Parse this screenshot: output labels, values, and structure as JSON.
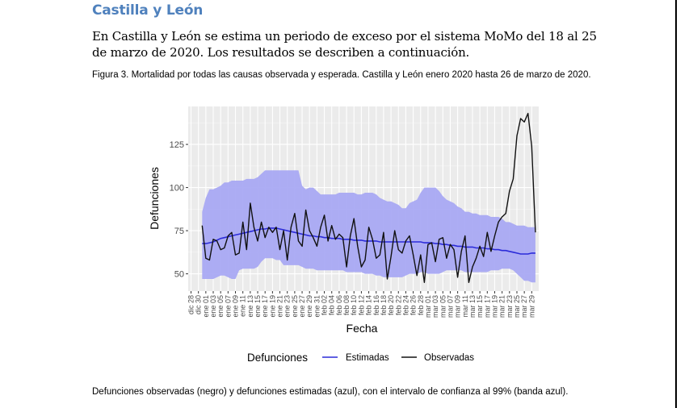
{
  "heading": "Castilla y León",
  "intro": "En Castilla y León se estima un periodo de exceso por el sistema MoMo del 18 al 25 de marzo de 2020. Los resultados se describen a continuación.",
  "caption": "Figura 3. Mortalidad por todas las causas observada y esperada. Castilla y León enero 2020 hasta 26 de marzo de 2020.",
  "footnote": "Defunciones observadas (negro) y defunciones estimadas (azul), con el intervalo de confianza al 99% (banda azul).",
  "colors": {
    "heading": "#4f81bd",
    "estimated": "#2b2bd9",
    "observed": "#111111",
    "band": "#a9a9f3"
  },
  "chart_data": {
    "type": "line",
    "xlabel": "Fecha",
    "ylabel": "Defunciones",
    "ylim": [
      40,
      147
    ],
    "yticks": [
      50,
      75,
      100,
      125
    ],
    "x_tick_labels": [
      "dic 28",
      "dic 30",
      "ene 01",
      "ene 03",
      "ene 05",
      "ene 07",
      "ene 09",
      "ene 11",
      "ene 13",
      "ene 15",
      "ene 17",
      "ene 19",
      "ene 21",
      "ene 23",
      "ene 25",
      "ene 27",
      "ene 29",
      "ene 31",
      "feb 02",
      "feb 04",
      "feb 06",
      "feb 08",
      "feb 10",
      "feb 12",
      "feb 14",
      "feb 16",
      "feb 18",
      "feb 20",
      "feb 22",
      "feb 24",
      "feb 26",
      "feb 28",
      "mar 01",
      "mar 03",
      "mar 05",
      "mar 07",
      "mar 09",
      "mar 11",
      "mar 13",
      "mar 15",
      "mar 17",
      "mar 19",
      "mar 21",
      "mar 23",
      "mar 25",
      "mar 27",
      "mar 29"
    ],
    "x_start_label": "dic 28",
    "x_day_count": 93,
    "data_start_day": 3,
    "legend": {
      "title": "Defunciones",
      "entries": [
        "Estimadas",
        "Observadas"
      ],
      "position": "bottom"
    },
    "series": [
      {
        "name": "Observadas",
        "values": [
          78,
          59,
          58,
          70,
          69,
          64,
          65,
          72,
          74,
          61,
          62,
          80,
          64,
          91,
          77,
          69,
          80,
          71,
          77,
          74,
          77,
          64,
          75,
          58,
          77,
          85,
          69,
          66,
          87,
          75,
          71,
          66,
          77,
          84,
          69,
          78,
          70,
          73,
          71,
          54,
          72,
          82,
          66,
          54,
          58,
          77,
          70,
          59,
          61,
          74,
          47,
          60,
          75,
          64,
          62,
          69,
          72,
          61,
          49,
          61,
          45,
          67,
          68,
          57,
          70,
          71,
          59,
          67,
          64,
          48,
          63,
          72,
          45,
          54,
          59,
          66,
          60,
          74,
          63,
          72,
          80,
          83,
          85,
          98,
          105,
          130,
          140,
          138,
          143,
          124,
          74
        ],
        "day_offset": 3
      },
      {
        "name": "Estimadas",
        "values": [
          67.5,
          67.5,
          68.0,
          68.5,
          69.5,
          70.5,
          71.0,
          71.5,
          72.0,
          72.5,
          73.0,
          73.5,
          74.0,
          74.5,
          75.0,
          75.5,
          76.0,
          76.0,
          76.5,
          76.5,
          76.5,
          76.0,
          75.5,
          75.0,
          74.5,
          74.0,
          73.5,
          73.0,
          72.5,
          72.0,
          72.0,
          71.5,
          71.5,
          71.0,
          71.0,
          70.5,
          70.5,
          70.5,
          70.0,
          70.0,
          70.0,
          69.5,
          69.5,
          69.5,
          69.0,
          69.0,
          69.0,
          69.0,
          68.5,
          68.5,
          68.5,
          68.5,
          68.5,
          68.5,
          68.5,
          68.5,
          68.5,
          68.5,
          68.5,
          68.5,
          68.0,
          68.0,
          68.0,
          67.5,
          67.5,
          67.0,
          67.0,
          66.5,
          66.5,
          66.0,
          66.0,
          65.5,
          65.5,
          65.5,
          65.0,
          65.0,
          65.0,
          64.5,
          64.5,
          64.0,
          64.0,
          63.5,
          63.5,
          63.0,
          62.5,
          62.0,
          61.5,
          61.5,
          61.5,
          62.0,
          62.0
        ],
        "day_offset": 3
      }
    ],
    "band_99": {
      "upper": [
        86,
        94,
        99,
        99,
        100,
        101,
        103,
        103,
        104,
        104,
        104,
        104,
        105,
        105,
        105,
        106,
        108,
        110,
        110,
        110,
        110,
        110,
        110,
        110,
        110,
        110,
        110,
        101,
        99,
        100,
        100,
        98,
        96,
        96,
        96,
        96,
        96,
        97,
        97,
        97,
        97,
        97,
        96,
        96,
        97,
        97,
        97,
        96,
        94,
        93,
        92,
        92,
        91,
        90,
        88,
        88,
        91,
        92,
        93,
        97,
        100,
        100,
        100,
        100,
        98,
        95,
        93,
        92,
        91,
        89,
        88,
        86,
        86,
        85,
        85,
        84,
        84,
        84,
        83,
        83,
        83,
        82,
        80,
        80,
        79,
        78,
        78,
        78,
        77,
        77,
        77
      ],
      "lower": [
        47,
        47,
        47,
        47,
        48,
        49,
        49,
        48,
        47,
        47,
        52,
        53,
        53,
        53,
        53,
        54,
        57,
        59,
        59,
        59,
        58,
        58,
        55,
        55,
        55,
        55,
        55,
        54,
        53,
        53,
        53,
        52,
        52,
        52,
        52,
        52,
        52,
        52,
        52,
        51,
        51,
        51,
        51,
        51,
        50,
        50,
        50,
        49,
        49,
        48,
        48,
        48,
        48,
        48,
        48,
        49,
        50,
        50,
        50,
        51,
        51,
        50,
        50,
        50,
        50,
        51,
        52,
        52,
        52,
        52,
        52,
        51,
        51,
        51,
        51,
        51,
        51,
        51,
        52,
        52,
        52,
        53,
        53,
        53,
        52,
        50,
        48,
        46,
        46,
        45,
        45
      ],
      "day_offset": 3
    }
  }
}
